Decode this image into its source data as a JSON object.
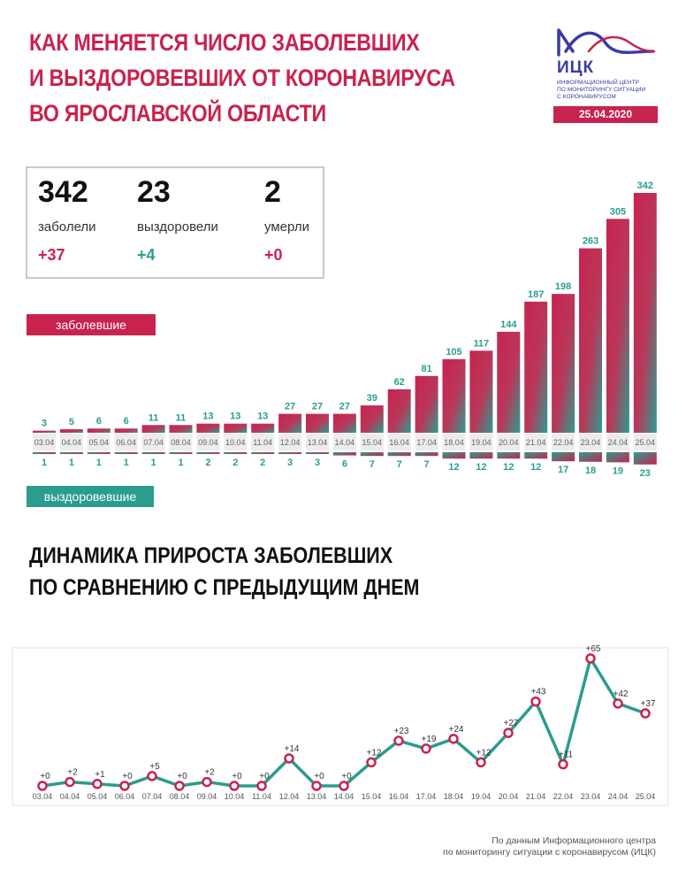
{
  "header": {
    "title_lines": [
      "КАК МЕНЯЕТСЯ ЧИСЛО ЗАБОЛЕВШИХ",
      "И ВЫЗДОРОВЕВШИХ ОТ КОРОНАВИРУСА",
      "ВО ЯРОСЛАВСКОЙ ОБЛАСТИ"
    ]
  },
  "logo": {
    "name": "ИЦК",
    "subtitle_lines": [
      "ИНФОРМАЦИОННЫЙ ЦЕНТР",
      "ПО МОНИТОРИНГУ СИТУАЦИИ",
      "С КОРОНАВИРУСОМ"
    ],
    "date": "25.04.2020"
  },
  "stats": [
    {
      "value": "342",
      "label": "заболели",
      "delta": "+37"
    },
    {
      "value": "23",
      "label": "выздоровели",
      "delta": "+4"
    },
    {
      "value": "2",
      "label": "умерли",
      "delta": "+0"
    }
  ],
  "colors": {
    "red": "#c8234f",
    "teal": "#2a9d8f",
    "dark": "#111111"
  },
  "legend": {
    "infected": "заболевшие",
    "recovered": "выздоровевшие"
  },
  "section2": {
    "title_lines": [
      "ДИНАМИКА ПРИРОСТА ЗАБОЛЕВШИХ",
      "ПО СРАВНЕНИЮ С ПРЕДЫДУЩИМ ДНЕМ"
    ]
  },
  "source": {
    "lines": [
      "По данным Информационного центра",
      "по мониторингу ситуации с коронавирусом (ИЦК)"
    ]
  },
  "chart_data": [
    {
      "type": "bar",
      "categories": [
        "03.04",
        "04.04",
        "05.04",
        "06.04",
        "07.04",
        "08.04",
        "09.04",
        "10.04",
        "11.04",
        "12.04",
        "13.04",
        "14.04",
        "15.04",
        "16.04",
        "17.04",
        "18.04",
        "19.04",
        "20.04",
        "21.04",
        "22.04",
        "23.04",
        "24.04",
        "25.04"
      ],
      "series": [
        {
          "name": "заболевшие",
          "values": [
            3,
            5,
            6,
            6,
            11,
            11,
            13,
            13,
            13,
            27,
            27,
            27,
            39,
            62,
            81,
            105,
            117,
            144,
            187,
            198,
            263,
            305,
            342
          ]
        },
        {
          "name": "выздоровевшие",
          "values": [
            1,
            1,
            1,
            1,
            1,
            1,
            2,
            2,
            2,
            3,
            3,
            6,
            7,
            7,
            7,
            12,
            12,
            12,
            12,
            17,
            18,
            19,
            23
          ]
        }
      ]
    },
    {
      "type": "line",
      "categories": [
        "03.04",
        "04.04",
        "05.04",
        "06.04",
        "07.04",
        "08.04",
        "09.04",
        "10.04",
        "11.04",
        "12.04",
        "13.04",
        "14.04",
        "15.04",
        "16.04",
        "17.04",
        "18.04",
        "19.04",
        "20.04",
        "21.04",
        "22.04",
        "23.04",
        "24.04",
        "25.04"
      ],
      "values": [
        0,
        2,
        1,
        0,
        5,
        0,
        2,
        0,
        0,
        14,
        0,
        0,
        12,
        23,
        19,
        24,
        12,
        27,
        43,
        11,
        65,
        42,
        37
      ],
      "labels": [
        "+0",
        "+2",
        "+1",
        "+0",
        "+5",
        "+0",
        "+2",
        "+0",
        "+0",
        "+14",
        "+0",
        "+0",
        "+12",
        "+23",
        "+19",
        "+24",
        "+12",
        "+27",
        "+43",
        "+11",
        "+65",
        "+42",
        "+37"
      ]
    }
  ]
}
